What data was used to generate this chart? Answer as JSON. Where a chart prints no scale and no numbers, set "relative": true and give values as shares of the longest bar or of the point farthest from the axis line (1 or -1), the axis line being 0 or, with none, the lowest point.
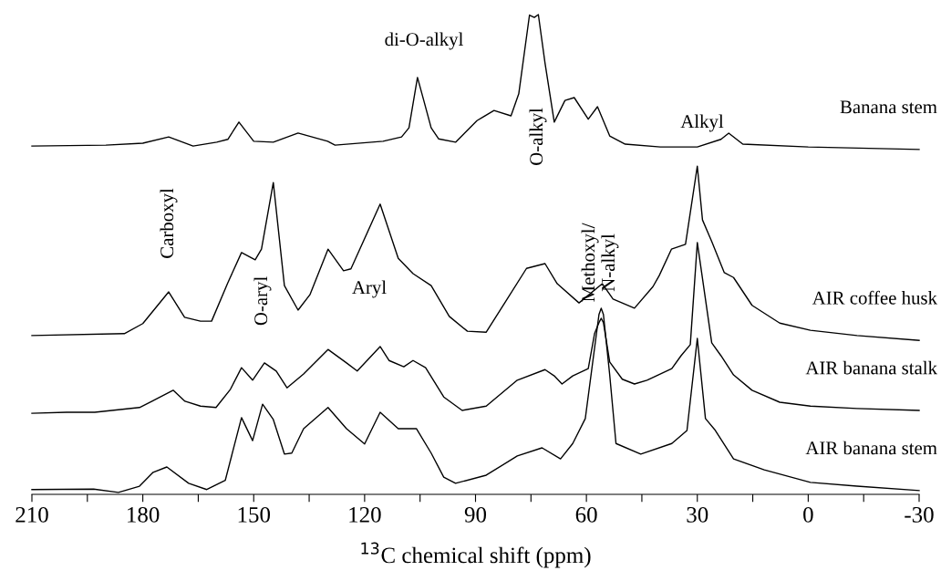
{
  "chart_data": {
    "type": "line",
    "relative": true,
    "xlabel": "$^{13}$C chemical shift (ppm)",
    "xlim": [
      210,
      -30
    ],
    "xticks": [
      210,
      {
        "value": 195,
        "label": null
      },
      180,
      {
        "value": 165,
        "label": null
      },
      150,
      {
        "value": 135,
        "label": null
      },
      120,
      {
        "value": 105,
        "label": null
      },
      90,
      {
        "value": 75,
        "label": null
      },
      60,
      {
        "value": 45,
        "label": null
      },
      30,
      {
        "value": 15,
        "label": null
      },
      0,
      {
        "value": -15,
        "label": null
      },
      -30
    ],
    "grid": false,
    "legend": false,
    "marker": "none",
    "line_style": "solid",
    "series": [
      {
        "name": "Banana stem",
        "color": "#000000",
        "x": [
          210,
          190,
          180,
          173,
          166.4,
          160,
          157,
          154,
          150,
          144.7,
          138,
          130,
          128,
          115,
          110,
          108,
          105.7,
          104,
          102,
          100,
          95.4,
          89.6,
          87.9,
          85,
          80.4,
          78.3,
          75.4,
          74.1,
          73,
          71.2,
          68.7,
          65.8,
          63.3,
          59.5,
          57,
          53.7,
          49.5,
          40,
          30,
          23.6,
          21.5,
          17.7,
          0,
          -30
        ],
        "values": [
          0.726,
          0.728,
          0.732,
          0.745,
          0.726,
          0.734,
          0.74,
          0.776,
          0.736,
          0.734,
          0.753,
          0.736,
          0.728,
          0.736,
          0.745,
          0.764,
          0.869,
          0.821,
          0.764,
          0.741,
          0.734,
          0.779,
          0.787,
          0.8,
          0.789,
          0.835,
          0.999,
          0.994,
          1.0,
          0.899,
          0.776,
          0.821,
          0.827,
          0.782,
          0.808,
          0.747,
          0.73,
          0.724,
          0.724,
          0.74,
          0.753,
          0.73,
          0.724,
          0.719
        ]
      },
      {
        "name": "AIR coffee husk",
        "color": "#000000",
        "x": [
          210,
          185,
          180,
          173,
          168.7,
          164.4,
          161.4,
          157,
          153.3,
          149.6,
          147.9,
          144.7,
          141.7,
          138,
          134.8,
          129.9,
          125.7,
          123.7,
          115.8,
          110.9,
          106.9,
          102,
          97.1,
          92.2,
          87.1,
          82.1,
          76.2,
          71.2,
          67.9,
          62,
          55.7,
          52.8,
          47,
          42,
          40.3,
          37,
          33.2,
          30,
          28.6,
          26.1,
          22.7,
          20.2,
          15.2,
          7.7,
          -0.6,
          -13.2,
          -30
        ],
        "values": [
          0.331,
          0.335,
          0.356,
          0.422,
          0.369,
          0.361,
          0.361,
          0.441,
          0.504,
          0.489,
          0.511,
          0.65,
          0.435,
          0.384,
          0.416,
          0.511,
          0.466,
          0.47,
          0.605,
          0.492,
          0.46,
          0.435,
          0.371,
          0.34,
          0.338,
          0.399,
          0.471,
          0.481,
          0.439,
          0.399,
          0.439,
          0.407,
          0.388,
          0.433,
          0.456,
          0.511,
          0.521,
          0.684,
          0.572,
          0.527,
          0.462,
          0.452,
          0.394,
          0.357,
          0.342,
          0.331,
          0.321
        ]
      },
      {
        "name": "AIR banana stalk",
        "color": "#000000",
        "x": [
          210,
          200.6,
          193,
          180.9,
          177.5,
          171.8,
          168.6,
          164.4,
          160.2,
          156.3,
          153.3,
          150.3,
          147.1,
          143.9,
          141,
          136.5,
          129.9,
          124.9,
          122,
          115.8,
          113.4,
          109.4,
          106.9,
          103.5,
          98.6,
          93.6,
          87.1,
          78.7,
          71.2,
          68.7,
          66.6,
          63.7,
          59.5,
          57.8,
          56.6,
          56,
          55.4,
          53.7,
          50.3,
          47,
          43.6,
          36.9,
          34.4,
          31.9,
          30,
          26.1,
          23.6,
          20.2,
          15.2,
          7.7,
          -0.6,
          -13.2,
          -30
        ],
        "values": [
          0.169,
          0.171,
          0.171,
          0.181,
          0.194,
          0.217,
          0.194,
          0.184,
          0.181,
          0.219,
          0.264,
          0.238,
          0.274,
          0.257,
          0.222,
          0.251,
          0.302,
          0.274,
          0.257,
          0.308,
          0.279,
          0.266,
          0.279,
          0.264,
          0.203,
          0.175,
          0.184,
          0.238,
          0.26,
          0.247,
          0.23,
          0.247,
          0.262,
          0.335,
          0.358,
          0.367,
          0.358,
          0.276,
          0.24,
          0.23,
          0.238,
          0.262,
          0.289,
          0.312,
          0.525,
          0.316,
          0.289,
          0.249,
          0.217,
          0.192,
          0.184,
          0.179,
          0.175
        ]
      },
      {
        "name": "AIR banana stem",
        "color": "#000000",
        "x": [
          210,
          193.3,
          186.6,
          180.9,
          177.2,
          173.5,
          167.6,
          162.7,
          157.7,
          153.3,
          150.3,
          147.6,
          144.7,
          141.7,
          139.7,
          136.5,
          129.9,
          124.9,
          120,
          115.8,
          110.9,
          106,
          102,
          98.6,
          95.4,
          87.1,
          78.7,
          72,
          67,
          63.7,
          60.3,
          56.6,
          56,
          55.4,
          53.7,
          52,
          45.3,
          36.9,
          32.8,
          30,
          27.8,
          25.3,
          20.2,
          11.9,
          -0.6,
          -13.2,
          -30
        ],
        "values": [
          0.01,
          0.011,
          0.004,
          0.017,
          0.046,
          0.057,
          0.023,
          0.01,
          0.029,
          0.16,
          0.112,
          0.188,
          0.156,
          0.084,
          0.086,
          0.137,
          0.181,
          0.137,
          0.105,
          0.171,
          0.137,
          0.137,
          0.086,
          0.036,
          0.023,
          0.04,
          0.08,
          0.097,
          0.074,
          0.106,
          0.158,
          0.375,
          0.388,
          0.375,
          0.249,
          0.106,
          0.084,
          0.106,
          0.133,
          0.325,
          0.158,
          0.135,
          0.074,
          0.051,
          0.025,
          0.017,
          0.008
        ]
      }
    ],
    "annotations": [
      "di-O-alkyl",
      "O-alkyl",
      "Alkyl",
      "Carboxyl",
      "O-aryl",
      "Aryl",
      "Methoxyl/\nN-alkyl"
    ]
  }
}
